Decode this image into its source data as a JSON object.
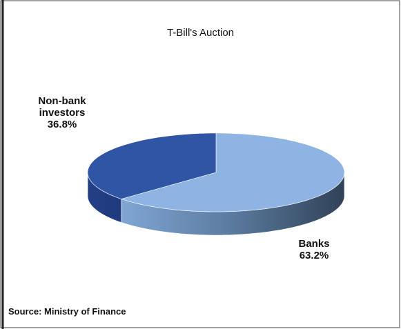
{
  "chart_data": {
    "type": "pie",
    "title": "T-Bill's Auction",
    "categories": [
      "Banks",
      "Non-bank investors"
    ],
    "values": [
      63.2,
      36.8
    ],
    "value_labels": [
      "63.2%",
      "36.8%"
    ],
    "colors": [
      "#8db4e2",
      "#2f55a4"
    ],
    "source": "Source: Ministry of Finance"
  }
}
